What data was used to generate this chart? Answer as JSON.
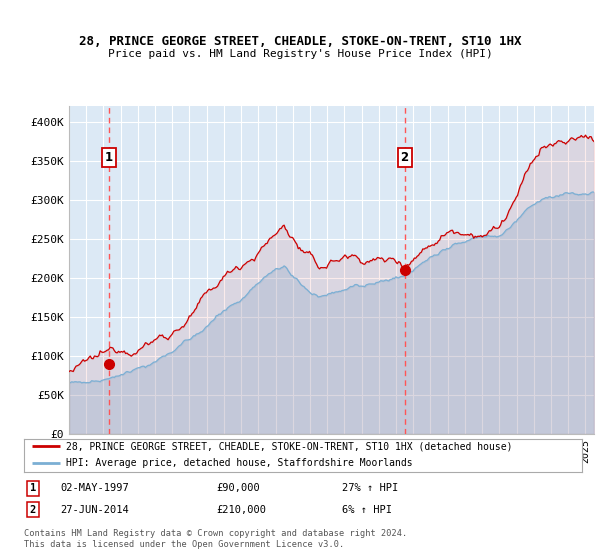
{
  "title_line1": "28, PRINCE GEORGE STREET, CHEADLE, STOKE-ON-TRENT, ST10 1HX",
  "title_line2": "Price paid vs. HM Land Registry's House Price Index (HPI)",
  "ylabel_ticks": [
    "£0",
    "£50K",
    "£100K",
    "£150K",
    "£200K",
    "£250K",
    "£300K",
    "£350K",
    "£400K"
  ],
  "ylabel_values": [
    0,
    50000,
    100000,
    150000,
    200000,
    250000,
    300000,
    350000,
    400000
  ],
  "ylim": [
    0,
    420000
  ],
  "xlim_start": 1995.0,
  "xlim_end": 2025.5,
  "plot_bg_color": "#dce9f5",
  "grid_color": "#ffffff",
  "sale1_year": 1997.33,
  "sale1_price": 90000,
  "sale1_label": "1",
  "sale2_year": 2014.5,
  "sale2_price": 210000,
  "sale2_label": "2",
  "red_line_color": "#cc0000",
  "blue_line_color": "#7bafd4",
  "dashed_line_color": "#ff5555",
  "marker_color": "#cc0000",
  "legend_line1": "28, PRINCE GEORGE STREET, CHEADLE, STOKE-ON-TRENT, ST10 1HX (detached house)",
  "legend_line2": "HPI: Average price, detached house, Staffordshire Moorlands",
  "note1_date": "02-MAY-1997",
  "note1_price": "£90,000",
  "note1_hpi": "27% ↑ HPI",
  "note2_date": "27-JUN-2014",
  "note2_price": "£210,000",
  "note2_hpi": "6% ↑ HPI",
  "footer": "Contains HM Land Registry data © Crown copyright and database right 2024.\nThis data is licensed under the Open Government Licence v3.0."
}
